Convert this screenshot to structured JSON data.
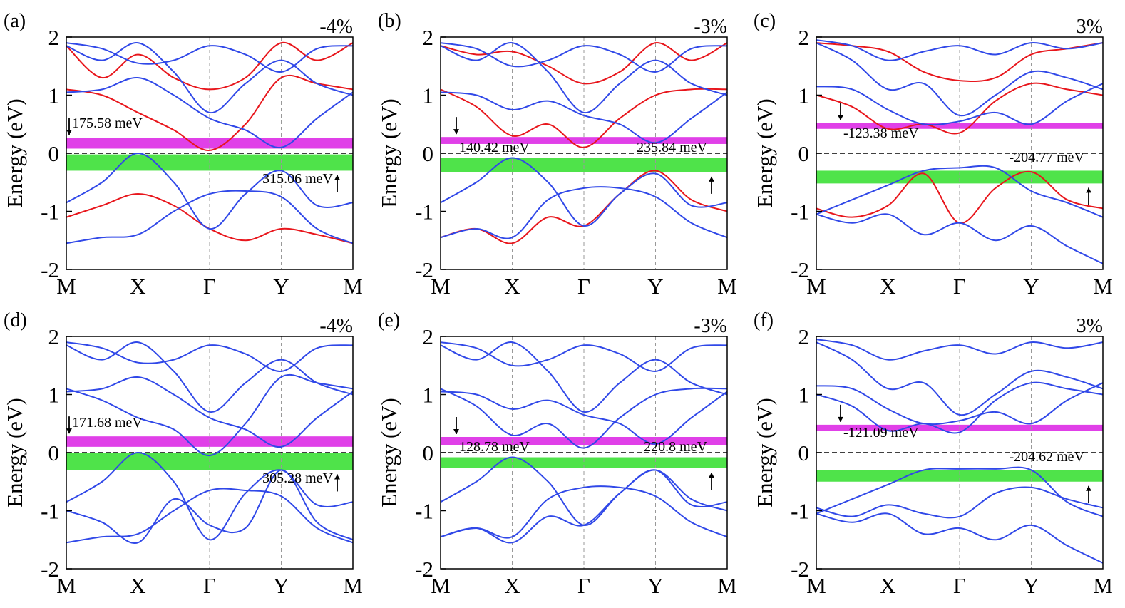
{
  "chart_data": [
    {
      "type": "line",
      "panel": "(a)",
      "subtitle": "-4%",
      "ylabel": "Energy (eV)",
      "x": [
        0,
        0.5,
        1,
        1.5,
        2,
        2.5,
        3,
        3.5,
        4
      ],
      "xlim": [
        0,
        4
      ],
      "xticks": [
        {
          "value": 0,
          "label": "M"
        },
        {
          "value": 1,
          "label": "X"
        },
        {
          "value": 2,
          "label": "Γ"
        },
        {
          "value": 3,
          "label": "Y"
        },
        {
          "value": 4,
          "label": "M"
        }
      ],
      "ylim": [
        -2,
        2
      ],
      "yticks": [
        -2,
        -1,
        0,
        1,
        2
      ],
      "highlights": [
        {
          "color": "#e040e8",
          "range": [
            0.08,
            0.27
          ]
        },
        {
          "color": "#4fe34a",
          "range": [
            -0.3,
            -0.02
          ]
        }
      ],
      "annotations": [
        "175.58 meV",
        "315.06 meV"
      ],
      "series": [
        {
          "color": "#e8161c",
          "values": [
            1.1,
            1.0,
            0.7,
            0.4,
            0.05,
            0.5,
            1.3,
            1.2,
            1.1
          ]
        },
        {
          "color": "#e8161c",
          "values": [
            1.85,
            1.3,
            1.7,
            1.3,
            1.1,
            1.3,
            1.9,
            1.6,
            1.9
          ]
        },
        {
          "color": "#e8161c",
          "values": [
            -1.1,
            -0.9,
            -0.7,
            -0.9,
            -1.3,
            -1.5,
            -1.3,
            -1.4,
            -1.55
          ]
        },
        {
          "color": "#3048e8",
          "values": [
            -0.85,
            -0.5,
            0.0,
            -0.5,
            -1.3,
            -0.7,
            -0.3,
            -0.9,
            -0.85
          ]
        },
        {
          "color": "#3048e8",
          "values": [
            -1.55,
            -1.45,
            -1.4,
            -1.0,
            -0.7,
            -0.65,
            -0.75,
            -1.3,
            -1.55
          ]
        },
        {
          "color": "#3048e8",
          "values": [
            1.05,
            1.1,
            1.3,
            1.0,
            0.6,
            0.4,
            0.1,
            0.6,
            1.05
          ]
        },
        {
          "color": "#3048e8",
          "values": [
            1.85,
            1.6,
            1.9,
            1.4,
            0.7,
            1.2,
            1.6,
            1.2,
            1.0
          ]
        },
        {
          "color": "#3048e8",
          "values": [
            1.9,
            1.8,
            1.55,
            1.6,
            1.85,
            1.7,
            1.4,
            1.8,
            1.85
          ]
        }
      ]
    },
    {
      "type": "line",
      "panel": "(b)",
      "subtitle": "-3%",
      "ylabel": "Energy (eV)",
      "x": [
        0,
        0.5,
        1,
        1.5,
        2,
        2.5,
        3,
        3.5,
        4
      ],
      "xlim": [
        0,
        4
      ],
      "xticks": [
        {
          "value": 0,
          "label": "M"
        },
        {
          "value": 1,
          "label": "X"
        },
        {
          "value": 2,
          "label": "Γ"
        },
        {
          "value": 3,
          "label": "Y"
        },
        {
          "value": 4,
          "label": "M"
        }
      ],
      "ylim": [
        -2,
        2
      ],
      "yticks": [
        -2,
        -1,
        0,
        1,
        2
      ],
      "highlights": [
        {
          "color": "#e040e8",
          "range": [
            0.16,
            0.28
          ]
        },
        {
          "color": "#4fe34a",
          "range": [
            -0.33,
            -0.08
          ]
        }
      ],
      "annotations": [
        "140.42 meV",
        "235.84 meV"
      ],
      "series": [
        {
          "color": "#e8161c",
          "values": [
            1.1,
            0.8,
            0.3,
            0.5,
            0.1,
            0.6,
            1.0,
            1.1,
            1.1
          ]
        },
        {
          "color": "#e8161c",
          "values": [
            1.85,
            1.7,
            1.75,
            1.5,
            1.2,
            1.4,
            1.9,
            1.6,
            1.9
          ]
        },
        {
          "color": "#e8161c",
          "values": [
            -1.45,
            -1.3,
            -1.55,
            -1.1,
            -1.25,
            -0.7,
            -0.3,
            -0.8,
            -1.0
          ]
        },
        {
          "color": "#3048e8",
          "values": [
            -0.85,
            -0.5,
            -0.08,
            -0.5,
            -1.25,
            -0.7,
            -0.35,
            -0.9,
            -0.85
          ]
        },
        {
          "color": "#3048e8",
          "values": [
            -1.45,
            -1.3,
            -1.45,
            -0.8,
            -0.6,
            -0.6,
            -0.75,
            -1.2,
            -1.45
          ]
        },
        {
          "color": "#3048e8",
          "values": [
            1.05,
            1.0,
            0.75,
            0.9,
            0.65,
            0.5,
            0.18,
            0.6,
            1.05
          ]
        },
        {
          "color": "#3048e8",
          "values": [
            1.85,
            1.6,
            1.9,
            1.4,
            0.7,
            1.2,
            1.6,
            1.2,
            1.0
          ]
        },
        {
          "color": "#3048e8",
          "values": [
            1.9,
            1.8,
            1.5,
            1.6,
            1.85,
            1.7,
            1.4,
            1.8,
            1.85
          ]
        }
      ]
    },
    {
      "type": "line",
      "panel": "(c)",
      "subtitle": "3%",
      "ylabel": "Energy (eV)",
      "x": [
        0,
        0.5,
        1,
        1.5,
        2,
        2.5,
        3,
        3.5,
        4
      ],
      "xlim": [
        0,
        4
      ],
      "xticks": [
        {
          "value": 0,
          "label": "M"
        },
        {
          "value": 1,
          "label": "X"
        },
        {
          "value": 2,
          "label": "Γ"
        },
        {
          "value": 3,
          "label": "Y"
        },
        {
          "value": 4,
          "label": "M"
        }
      ],
      "ylim": [
        -2,
        2
      ],
      "yticks": [
        -2,
        -1,
        0,
        1,
        2
      ],
      "highlights": [
        {
          "color": "#e040e8",
          "range": [
            0.42,
            0.52
          ]
        },
        {
          "color": "#4fe34a",
          "range": [
            -0.52,
            -0.3
          ]
        }
      ],
      "annotations": [
        "-123.38 meV",
        "-204.77 meV"
      ],
      "series": [
        {
          "color": "#e8161c",
          "values": [
            1.0,
            0.8,
            0.42,
            0.5,
            0.35,
            0.9,
            1.2,
            1.1,
            1.0
          ]
        },
        {
          "color": "#e8161c",
          "values": [
            1.9,
            1.85,
            1.75,
            1.4,
            1.25,
            1.3,
            1.7,
            1.8,
            1.9
          ]
        },
        {
          "color": "#e8161c",
          "values": [
            -0.95,
            -1.1,
            -0.9,
            -0.35,
            -1.2,
            -0.6,
            -0.32,
            -0.8,
            -0.95
          ]
        },
        {
          "color": "#3048e8",
          "values": [
            -1.05,
            -0.8,
            -0.55,
            -0.3,
            -0.25,
            -0.25,
            -0.65,
            -0.85,
            -1.1
          ]
        },
        {
          "color": "#3048e8",
          "values": [
            -1.05,
            -1.2,
            -1.05,
            -1.4,
            -1.2,
            -1.5,
            -1.25,
            -1.6,
            -1.9
          ]
        },
        {
          "color": "#3048e8",
          "values": [
            1.15,
            1.1,
            0.75,
            0.5,
            0.55,
            0.7,
            0.5,
            0.9,
            1.2
          ]
        },
        {
          "color": "#3048e8",
          "values": [
            1.9,
            1.6,
            1.1,
            1.2,
            0.65,
            1.0,
            1.4,
            1.3,
            1.1
          ]
        },
        {
          "color": "#3048e8",
          "values": [
            1.95,
            1.85,
            1.6,
            1.75,
            1.85,
            1.7,
            1.9,
            1.8,
            1.9
          ]
        }
      ]
    },
    {
      "type": "line",
      "panel": "(d)",
      "subtitle": "-4%",
      "ylabel": "Energy (eV)",
      "x": [
        0,
        0.5,
        1,
        1.5,
        2,
        2.5,
        3,
        3.5,
        4
      ],
      "xlim": [
        0,
        4
      ],
      "xticks": [
        {
          "value": 0,
          "label": "M"
        },
        {
          "value": 1,
          "label": "X"
        },
        {
          "value": 2,
          "label": "Γ"
        },
        {
          "value": 3,
          "label": "Y"
        },
        {
          "value": 4,
          "label": "M"
        }
      ],
      "ylim": [
        -2,
        2
      ],
      "yticks": [
        -2,
        -1,
        0,
        1,
        2
      ],
      "highlights": [
        {
          "color": "#e040e8",
          "range": [
            0.1,
            0.28
          ]
        },
        {
          "color": "#4fe34a",
          "range": [
            -0.3,
            0.0
          ]
        }
      ],
      "annotations": [
        "171.68 meV",
        "305.28 meV"
      ],
      "series": [
        {
          "color": "#3048e8",
          "values": [
            -0.85,
            -0.5,
            0.0,
            -0.5,
            -1.5,
            -0.7,
            -0.3,
            -0.9,
            -0.85
          ]
        },
        {
          "color": "#3048e8",
          "values": [
            -1.55,
            -1.45,
            -1.4,
            -1.0,
            -0.65,
            -0.65,
            -0.75,
            -1.3,
            -1.55
          ]
        },
        {
          "color": "#3048e8",
          "values": [
            -1.0,
            -1.2,
            -1.55,
            -0.8,
            -1.25,
            -1.3,
            -0.3,
            -1.2,
            -1.5
          ]
        },
        {
          "color": "#3048e8",
          "values": [
            1.05,
            1.1,
            1.3,
            1.0,
            0.6,
            0.4,
            0.1,
            0.6,
            1.05
          ]
        },
        {
          "color": "#3048e8",
          "values": [
            1.1,
            0.9,
            0.6,
            0.4,
            -0.05,
            0.5,
            1.3,
            1.2,
            1.1
          ]
        },
        {
          "color": "#3048e8",
          "values": [
            1.85,
            1.6,
            1.9,
            1.4,
            0.7,
            1.2,
            1.6,
            1.2,
            1.0
          ]
        },
        {
          "color": "#3048e8",
          "values": [
            1.9,
            1.8,
            1.55,
            1.6,
            1.85,
            1.7,
            1.4,
            1.8,
            1.85
          ]
        }
      ]
    },
    {
      "type": "line",
      "panel": "(e)",
      "subtitle": "-3%",
      "ylabel": "Energy (eV)",
      "x": [
        0,
        0.5,
        1,
        1.5,
        2,
        2.5,
        3,
        3.5,
        4
      ],
      "xlim": [
        0,
        4
      ],
      "xticks": [
        {
          "value": 0,
          "label": "M"
        },
        {
          "value": 1,
          "label": "X"
        },
        {
          "value": 2,
          "label": "Γ"
        },
        {
          "value": 3,
          "label": "Y"
        },
        {
          "value": 4,
          "label": "M"
        }
      ],
      "ylim": [
        -2,
        2
      ],
      "yticks": [
        -2,
        -1,
        0,
        1,
        2
      ],
      "highlights": [
        {
          "color": "#e040e8",
          "range": [
            0.13,
            0.27
          ]
        },
        {
          "color": "#4fe34a",
          "range": [
            -0.27,
            -0.08
          ]
        }
      ],
      "annotations": [
        "128.78 meV",
        "220.8 meV"
      ],
      "series": [
        {
          "color": "#3048e8",
          "values": [
            -0.85,
            -0.5,
            -0.08,
            -0.5,
            -1.25,
            -0.7,
            -0.3,
            -0.9,
            -0.85
          ]
        },
        {
          "color": "#3048e8",
          "values": [
            -1.45,
            -1.3,
            -1.45,
            -0.8,
            -0.6,
            -0.6,
            -0.75,
            -1.2,
            -1.45
          ]
        },
        {
          "color": "#3048e8",
          "values": [
            -1.45,
            -1.3,
            -1.55,
            -1.1,
            -1.25,
            -0.7,
            -0.3,
            -0.8,
            -1.0
          ]
        },
        {
          "color": "#3048e8",
          "values": [
            1.05,
            1.0,
            0.75,
            0.9,
            0.65,
            0.5,
            0.15,
            0.6,
            1.05
          ]
        },
        {
          "color": "#3048e8",
          "values": [
            1.1,
            0.8,
            0.3,
            0.5,
            0.08,
            0.6,
            1.0,
            1.1,
            1.1
          ]
        },
        {
          "color": "#3048e8",
          "values": [
            1.85,
            1.6,
            1.9,
            1.4,
            0.7,
            1.2,
            1.6,
            1.2,
            1.0
          ]
        },
        {
          "color": "#3048e8",
          "values": [
            1.9,
            1.8,
            1.5,
            1.6,
            1.85,
            1.7,
            1.4,
            1.8,
            1.85
          ]
        }
      ]
    },
    {
      "type": "line",
      "panel": "(f)",
      "subtitle": "3%",
      "ylabel": "Energy (eV)",
      "x": [
        0,
        0.5,
        1,
        1.5,
        2,
        2.5,
        3,
        3.5,
        4
      ],
      "xlim": [
        0,
        4
      ],
      "xticks": [
        {
          "value": 0,
          "label": "M"
        },
        {
          "value": 1,
          "label": "X"
        },
        {
          "value": 2,
          "label": "Γ"
        },
        {
          "value": 3,
          "label": "Y"
        },
        {
          "value": 4,
          "label": "M"
        }
      ],
      "ylim": [
        -2,
        2
      ],
      "yticks": [
        -2,
        -1,
        0,
        1,
        2
      ],
      "highlights": [
        {
          "color": "#e040e8",
          "range": [
            0.38,
            0.48
          ]
        },
        {
          "color": "#4fe34a",
          "range": [
            -0.5,
            -0.3
          ]
        }
      ],
      "annotations": [
        "-121.09 meV",
        "-204.62 meV"
      ],
      "series": [
        {
          "color": "#3048e8",
          "values": [
            -1.05,
            -0.8,
            -0.55,
            -0.3,
            -0.28,
            -0.28,
            -0.3,
            -0.85,
            -1.1
          ]
        },
        {
          "color": "#3048e8",
          "values": [
            -1.05,
            -1.2,
            -1.05,
            -1.4,
            -1.3,
            -1.5,
            -1.25,
            -1.6,
            -1.9
          ]
        },
        {
          "color": "#3048e8",
          "values": [
            -0.95,
            -1.1,
            -0.9,
            -1.05,
            -1.1,
            -0.7,
            -0.6,
            -0.8,
            -0.95
          ]
        },
        {
          "color": "#3048e8",
          "values": [
            1.15,
            1.1,
            0.75,
            0.5,
            0.55,
            0.7,
            0.5,
            0.9,
            1.2
          ]
        },
        {
          "color": "#3048e8",
          "values": [
            1.0,
            0.8,
            0.38,
            0.5,
            0.35,
            0.9,
            1.2,
            1.1,
            1.0
          ]
        },
        {
          "color": "#3048e8",
          "values": [
            1.9,
            1.6,
            1.1,
            1.2,
            0.65,
            1.0,
            1.4,
            1.3,
            1.1
          ]
        },
        {
          "color": "#3048e8",
          "values": [
            1.95,
            1.85,
            1.6,
            1.75,
            1.85,
            1.7,
            1.9,
            1.8,
            1.9
          ]
        }
      ]
    }
  ]
}
